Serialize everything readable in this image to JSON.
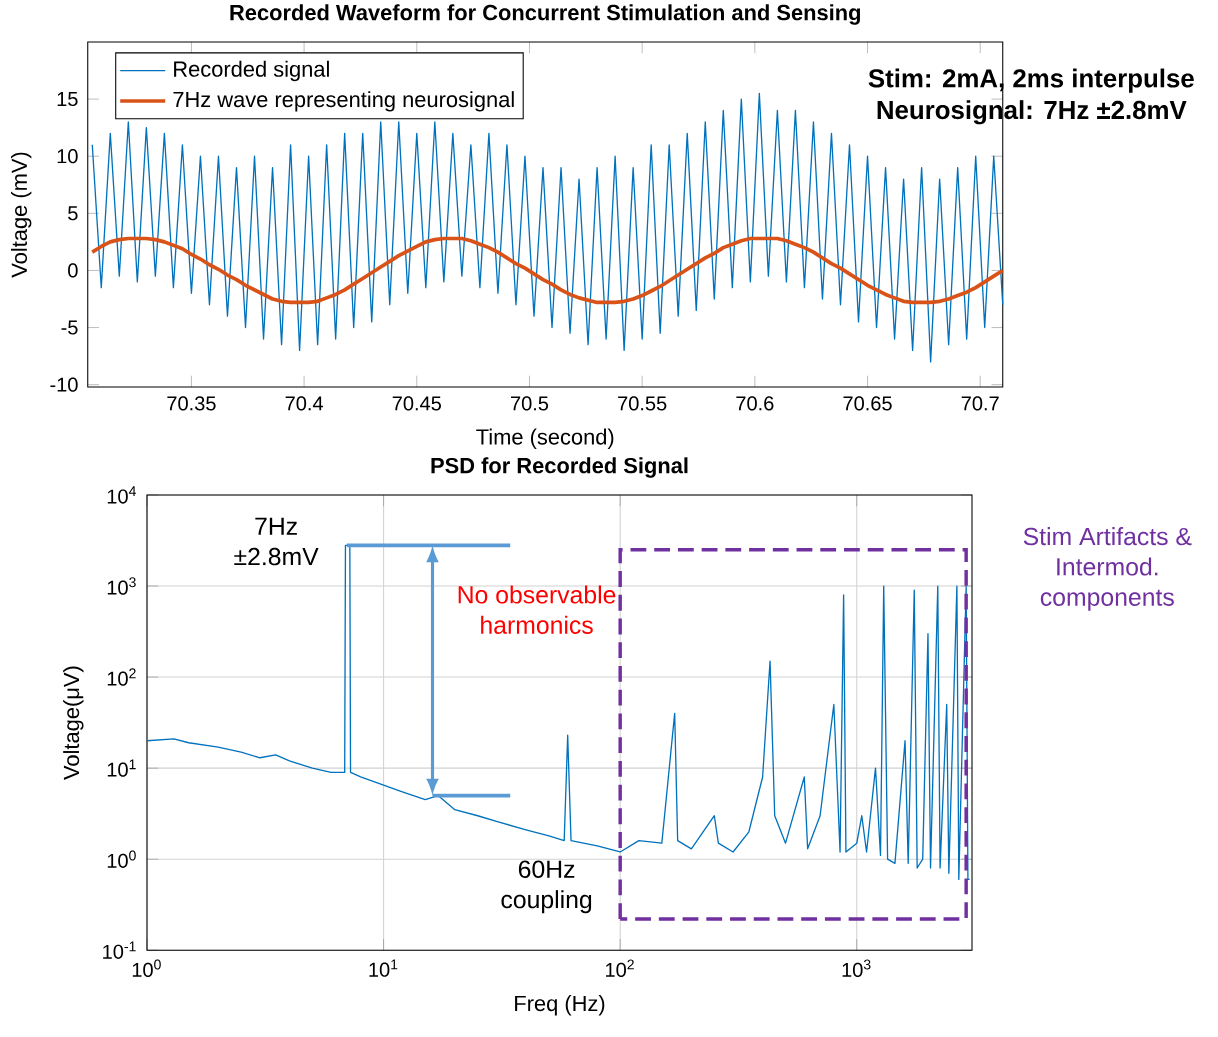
{
  "chart_data": [
    {
      "type": "line",
      "title": "Recorded Waveform for Concurrent Stimulation and Sensing",
      "xlabel": "Time (second)",
      "ylabel": "Voltage (mV)",
      "xlim": [
        70.304,
        70.71
      ],
      "ylim": [
        -10.2,
        20
      ],
      "xticks": [
        70.35,
        70.4,
        70.45,
        70.5,
        70.55,
        70.6,
        70.65,
        70.7
      ],
      "yticks": [
        -10,
        -5,
        0,
        5,
        10,
        15
      ],
      "legend": "top left",
      "grid": false,
      "annotations": [
        "Stim: 2mA, 2ms interpulse",
        "Neurosignal: 7Hz ±2.8mV"
      ],
      "x": [
        70.306,
        70.31,
        70.314,
        70.318,
        70.322,
        70.326,
        70.33,
        70.334,
        70.338,
        70.342,
        70.346,
        70.35,
        70.354,
        70.358,
        70.362,
        70.366,
        70.37,
        70.374,
        70.378,
        70.382,
        70.386,
        70.39,
        70.394,
        70.398,
        70.402,
        70.406,
        70.41,
        70.414,
        70.418,
        70.422,
        70.426,
        70.43,
        70.434,
        70.438,
        70.442,
        70.446,
        70.45,
        70.454,
        70.458,
        70.462,
        70.466,
        70.47,
        70.474,
        70.478,
        70.482,
        70.486,
        70.49,
        70.494,
        70.498,
        70.502,
        70.506,
        70.51,
        70.514,
        70.518,
        70.522,
        70.526,
        70.53,
        70.534,
        70.538,
        70.542,
        70.546,
        70.55,
        70.554,
        70.558,
        70.562,
        70.566,
        70.57,
        70.574,
        70.578,
        70.582,
        70.586,
        70.59,
        70.594,
        70.598,
        70.602,
        70.606,
        70.61,
        70.614,
        70.618,
        70.622,
        70.626,
        70.63,
        70.634,
        70.638,
        70.642,
        70.646,
        70.65,
        70.654,
        70.658,
        70.662,
        70.666,
        70.67,
        70.674,
        70.678,
        70.682,
        70.686,
        70.69,
        70.694,
        70.698,
        70.702,
        70.706,
        70.71
      ],
      "series": [
        {
          "name": "Recorded signal",
          "color": "#0072bd",
          "values": [
            11,
            -1.5,
            12,
            -0.5,
            13,
            -1,
            12.5,
            -0.5,
            12,
            -1.5,
            11,
            -2,
            10,
            -3,
            10,
            -4,
            9,
            -5,
            10,
            -6,
            9,
            -6.5,
            11,
            -7,
            10,
            -6.5,
            11,
            -6,
            12,
            -5,
            12,
            -4.5,
            13,
            -3,
            13,
            -2,
            12,
            -1.5,
            13,
            -1,
            12,
            -0.5,
            11,
            -1.5,
            12,
            -2,
            11,
            -3,
            10,
            -4,
            9,
            -5,
            9,
            -5.5,
            8,
            -6.5,
            9,
            -6,
            10,
            -7,
            9,
            -6,
            11,
            -5.5,
            11,
            -4,
            12,
            -3.5,
            13,
            -2.5,
            14,
            -1.5,
            15,
            -1,
            15.5,
            -0.5,
            14,
            -1,
            14,
            -1.5,
            13,
            -2.5,
            12,
            -3,
            11,
            -4.5,
            10,
            -5,
            9,
            -6,
            8,
            -7,
            9,
            -8,
            8,
            -6.5,
            9,
            -6,
            10,
            -5,
            10,
            -3
          ]
        },
        {
          "name": "7Hz wave representing neurosignal",
          "color": "#d95319",
          "values": [
            1.6,
            2.1,
            2.5,
            2.7,
            2.8,
            2.8,
            2.8,
            2.7,
            2.5,
            2.2,
            1.9,
            1.4,
            1.0,
            0.5,
            0.1,
            -0.4,
            -0.8,
            -1.3,
            -1.7,
            -2.1,
            -2.5,
            -2.7,
            -2.8,
            -2.8,
            -2.8,
            -2.7,
            -2.4,
            -2.1,
            -1.7,
            -1.2,
            -0.7,
            -0.2,
            0.3,
            0.8,
            1.3,
            1.7,
            2.1,
            2.5,
            2.7,
            2.8,
            2.8,
            2.8,
            2.6,
            2.3,
            2.0,
            1.6,
            1.1,
            0.6,
            0.2,
            -0.3,
            -0.8,
            -1.2,
            -1.7,
            -2.1,
            -2.4,
            -2.6,
            -2.8,
            -2.8,
            -2.8,
            -2.7,
            -2.5,
            -2.2,
            -1.8,
            -1.4,
            -0.9,
            -0.4,
            0.1,
            0.6,
            1.1,
            1.5,
            2.0,
            2.3,
            2.6,
            2.8,
            2.8,
            2.8,
            2.8,
            2.6,
            2.3,
            2.0,
            1.6,
            1.1,
            0.6,
            0.2,
            -0.3,
            -0.8,
            -1.3,
            -1.7,
            -2.1,
            -2.4,
            -2.7,
            -2.8,
            -2.8,
            -2.8,
            -2.7,
            -2.5,
            -2.2,
            -1.9,
            -1.5,
            -1.0,
            -0.5,
            0
          ]
        }
      ]
    },
    {
      "type": "line",
      "title": "PSD for Recorded Signal",
      "xlabel": "Freq (Hz)",
      "ylabel": "Voltage(μV)",
      "log": "xy",
      "grid": true,
      "xlim": [
        1,
        3070
      ],
      "ylim": [
        0.1,
        10000
      ],
      "xticks": [
        {
          "value": 1,
          "label": "10$^{0}$"
        },
        {
          "value": 10,
          "label": "10$^{1}$"
        },
        {
          "value": 100,
          "label": "10$^{2}$"
        },
        {
          "value": 1000,
          "label": "10$^{3}$"
        }
      ],
      "yticks": [
        {
          "value": 0.1,
          "label": "10$^{-1}$"
        },
        {
          "value": 1,
          "label": "10$^{0}$"
        },
        {
          "value": 10,
          "label": "10$^{1}$"
        },
        {
          "value": 100,
          "label": "10$^{2}$"
        },
        {
          "value": 1000,
          "label": "10$^{3}$"
        },
        {
          "value": 10000,
          "label": "10$^{4}$"
        }
      ],
      "annotations": [
        {
          "text": "7Hz ±2.8mV",
          "x": 7,
          "y": 2800
        },
        "No observable harmonics",
        {
          "text": "60Hz coupling",
          "x": 60,
          "y": 1.6
        },
        "Stim Artifacts & Intermod. components"
      ],
      "series": [
        {
          "color": "#0072bd",
          "x": [
            1,
            1.3,
            1.5,
            2,
            2.5,
            3,
            3.5,
            4,
            5,
            6,
            6.85,
            6.9,
            7.2,
            7.25,
            8,
            10,
            12,
            15,
            17,
            20,
            25,
            30,
            40,
            50,
            58,
            60,
            62,
            70,
            80,
            100,
            120,
            150,
            170,
            175,
            200,
            250,
            260,
            300,
            350,
            400,
            430,
            450,
            500,
            600,
            620,
            700,
            800,
            850,
            880,
            900,
            1000,
            1050,
            1100,
            1200,
            1260,
            1300,
            1350,
            1450,
            1600,
            1650,
            1750,
            1800,
            1900,
            2000,
            2050,
            2200,
            2250,
            2400,
            2450,
            2650,
            2700,
            2900,
            2950,
            3000
          ],
          "values": [
            20,
            21,
            19,
            17,
            15,
            13,
            14,
            12,
            10,
            9,
            9,
            2800,
            2800,
            9,
            8,
            6.5,
            5.5,
            4.5,
            5,
            3.5,
            3,
            2.6,
            2.1,
            1.8,
            1.6,
            23,
            1.6,
            1.5,
            1.4,
            1.2,
            1.6,
            1.5,
            40,
            1.6,
            1.3,
            3,
            1.5,
            1.2,
            2,
            8,
            150,
            3,
            1.5,
            8,
            1.3,
            3,
            50,
            1.2,
            800,
            1.2,
            1.5,
            3,
            1.2,
            10,
            1.1,
            1000,
            1,
            0.9,
            20,
            0.9,
            900,
            0.8,
            1,
            300,
            0.8,
            1000,
            0.8,
            50,
            0.7,
            1000,
            0.6,
            1000,
            0.6,
            0.6
          ]
        }
      ]
    }
  ]
}
